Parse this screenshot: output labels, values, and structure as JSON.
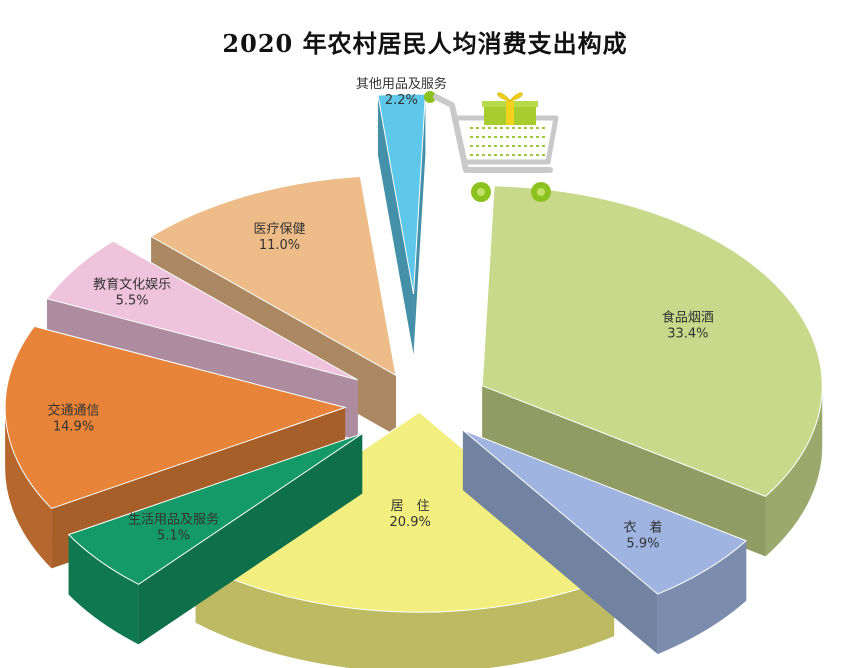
{
  "chart_data": {
    "type": "pie",
    "title": "2020 年农村居民人均消费支出构成",
    "unit": "%",
    "slices": [
      {
        "name": "食品烟酒",
        "value": 33.4,
        "label": "33.4%",
        "color": "#c8d98b"
      },
      {
        "name": "衣　着",
        "value": 5.9,
        "label": "5.9%",
        "color": "#9fb4e0"
      },
      {
        "name": "居　住",
        "value": 20.9,
        "label": "20.9%",
        "color": "#f2ee7f"
      },
      {
        "name": "生活用品及服务",
        "value": 5.1,
        "label": "5.1%",
        "color": "#139a68"
      },
      {
        "name": "交通通信",
        "value": 14.9,
        "label": "14.9%",
        "color": "#e8843a"
      },
      {
        "name": "教育文化娱乐",
        "value": 5.5,
        "label": "5.5%",
        "color": "#efc3dc"
      },
      {
        "name": "医疗保健",
        "value": 11.0,
        "label": "11.0%",
        "color": "#eebc88"
      },
      {
        "name": "其他用品及服务",
        "value": 2.2,
        "label": "2.2%",
        "color": "#5fc8ea"
      }
    ]
  }
}
